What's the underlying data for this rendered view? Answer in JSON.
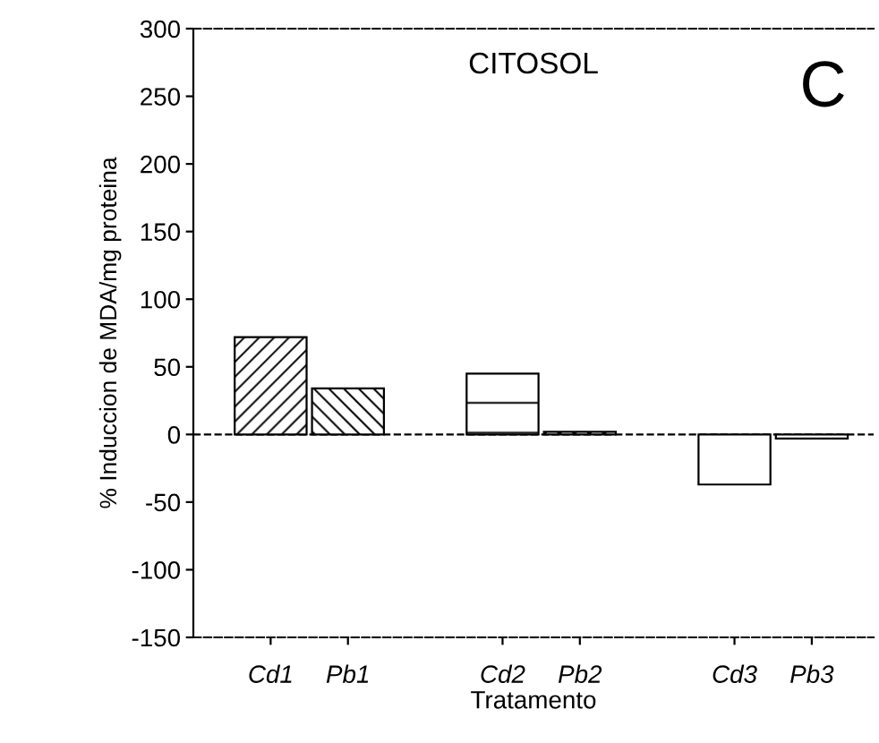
{
  "chart_data": {
    "type": "bar",
    "title": "CITOSOL",
    "xlabel": "Tratamento",
    "ylabel": "% Induccion de MDA/mg proteina",
    "categories": [
      "Cd1",
      "Pb1",
      "Cd2",
      "Pb2",
      "Cd3",
      "Pb3"
    ],
    "values": [
      72,
      34,
      45,
      2,
      -37,
      -3
    ],
    "ylim": [
      -150,
      300
    ],
    "yticks": [
      -150,
      -100,
      -50,
      0,
      50,
      100,
      150,
      200,
      250,
      300
    ],
    "ref_lines": [
      {
        "axis": "y",
        "value": 0,
        "line_style": "dashed",
        "color": "#000000"
      }
    ],
    "annotations": [
      "C"
    ],
    "grid": false,
    "legend": false
  }
}
